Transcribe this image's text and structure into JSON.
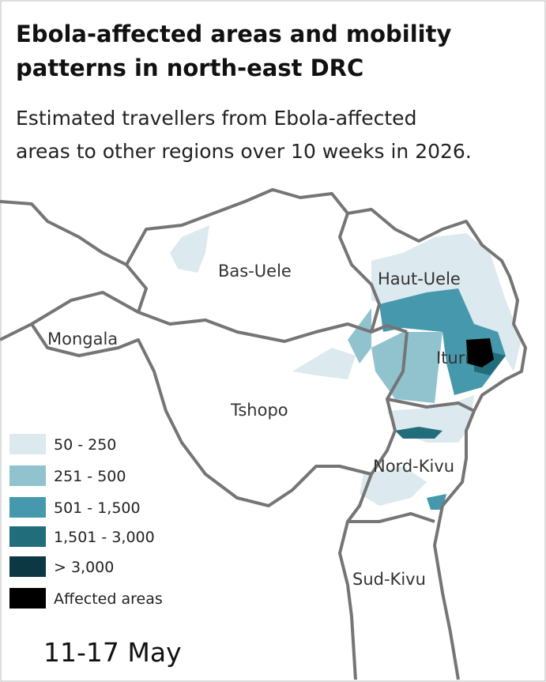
{
  "header": {
    "title_lines": [
      "Ebola-affected areas and mobility",
      "patterns in north-east DRC"
    ],
    "subtitle_lines": [
      "Estimated travellers from Ebola-affected",
      "areas to other regions over 10 weeks in 2026."
    ]
  },
  "map": {
    "regions": [
      "Bas-Uele",
      "Haut-Uele",
      "Mongala",
      "Ituri",
      "Tshopo",
      "Nord-Kivu",
      "Sud-Kivu"
    ],
    "legend": [
      {
        "label": "50 - 250",
        "color": "#dce9ee"
      },
      {
        "label": "251 - 500",
        "color": "#91c3cf"
      },
      {
        "label": "501 - 1,500",
        "color": "#4699ad"
      },
      {
        "label": "1,501 - 3,000",
        "color": "#226d7c"
      },
      {
        "label": "> 3,000",
        "color": "#0b3842"
      },
      {
        "label": "Affected areas",
        "color": "#000000"
      }
    ],
    "period": "11-17 May"
  }
}
